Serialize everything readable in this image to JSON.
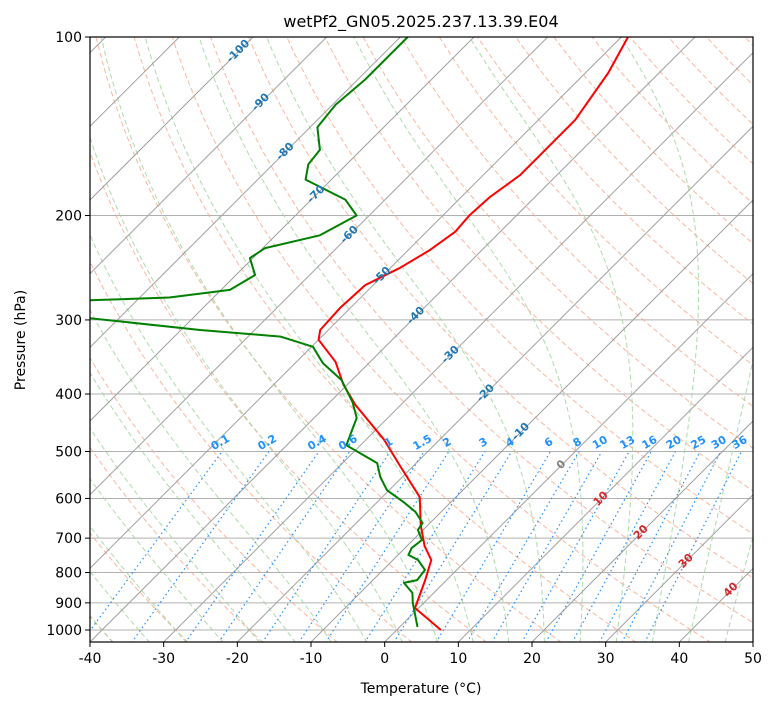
{
  "chart_data": {
    "type": "line",
    "subtype": "skew-t log-p",
    "title": "wetPf2_GN05.2025.237.13.39.E04",
    "xlabel": "Temperature (°C)",
    "ylabel": "Pressure (hPa)",
    "xlim": [
      -40,
      50
    ],
    "ylim": [
      1050,
      100
    ],
    "xticks": [
      "-40",
      "-30",
      "-20",
      "-10",
      "0",
      "10",
      "20",
      "30",
      "40",
      "50"
    ],
    "yticks": [
      "100",
      "200",
      "300",
      "400",
      "500",
      "600",
      "700",
      "800",
      "900",
      "1000"
    ],
    "grid": true,
    "colors": {
      "temperature": "#ff0000",
      "dewpoint": "#008000",
      "isotherm": "#a0a0a0",
      "dry_adiabat": "#f7a98f",
      "moist_adiabat": "#9fd39f",
      "mixing_ratio": "#1e90ff",
      "isotherm_label_negative": "#1f77b4",
      "isotherm_label_zero": "#808080",
      "isotherm_label_positive": "#d62728"
    },
    "series": [
      {
        "name": "Temperature",
        "pressure": [
          1000,
          918,
          824,
          762,
          722,
          665,
          597,
          529,
          478,
          417,
          386,
          353,
          324,
          312,
          286,
          262,
          245,
          229,
          213,
          200,
          186,
          171,
          158,
          138,
          115,
          100
        ],
        "temperature": [
          6.0,
          -0.5,
          -2.9,
          -4.8,
          -7.6,
          -11.0,
          -14.9,
          -21.8,
          -27.5,
          -36.2,
          -40.5,
          -44.7,
          -50.0,
          -51.1,
          -51.4,
          -51.1,
          -48.7,
          -47.1,
          -46.1,
          -46.4,
          -46.1,
          -45.0,
          -45.0,
          -45.0,
          -46.9,
          -49.1
        ]
      },
      {
        "name": "Dewpoint",
        "pressure": [
          988,
          900,
          866,
          833,
          824,
          792,
          762,
          747,
          727,
          705,
          678,
          660,
          632,
          608,
          581,
          552,
          523,
          488,
          460,
          439,
          413,
          379,
          355,
          333,
          320,
          312,
          298,
          288,
          278,
          275,
          267,
          252,
          236,
          227,
          216,
          200,
          188,
          174,
          164,
          155,
          142,
          130,
          118,
          100
        ],
        "temperature": [
          2.4,
          -1.5,
          -2.9,
          -5.4,
          -4.0,
          -4.3,
          -6.6,
          -8.6,
          -9.1,
          -8.8,
          -10.7,
          -11.0,
          -13.5,
          -16.5,
          -20.3,
          -23.0,
          -25.3,
          -31.9,
          -33.2,
          -34.2,
          -36.9,
          -41.4,
          -46.2,
          -49.8,
          -55.6,
          -67.4,
          -84.0,
          -95.0,
          -86.4,
          -76.0,
          -68.8,
          -67.4,
          -70.4,
          -69.7,
          -64.0,
          -61.7,
          -65.4,
          -73.5,
          -75.2,
          -75.6,
          -79.0,
          -79.6,
          -79.0,
          -79.0
        ]
      }
    ],
    "isotherm_labels": [
      "-100",
      "-90",
      "-80",
      "-70",
      "-60",
      "-50",
      "-40",
      "-30",
      "-20",
      "-10",
      "0",
      "10",
      "20",
      "30",
      "40"
    ],
    "mixing_ratio_labels": [
      "0.1",
      "0.2",
      "0.4",
      "0.6",
      "1",
      "1.5",
      "2",
      "3",
      "4",
      "6",
      "8",
      "10",
      "13",
      "16",
      "20",
      "25",
      "30",
      "36"
    ]
  }
}
